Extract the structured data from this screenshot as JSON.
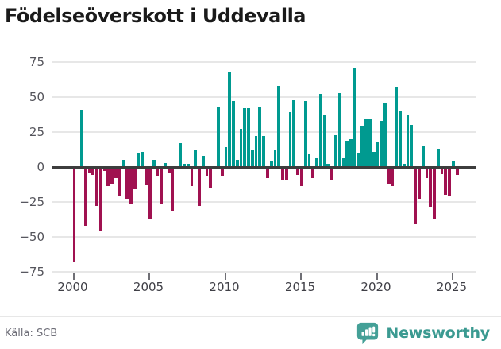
{
  "title": "Födelseöverskott i Uddevalla",
  "source_label": "Källa: SCB",
  "brand": {
    "name": "Newsworthy",
    "logo_color": "#44a097"
  },
  "chart_data": {
    "type": "bar",
    "title": "Födelseöverskott i Uddevalla",
    "unit": "quarterly birth surplus (persons)",
    "start_year": 2000,
    "start_quarter": 1,
    "frequency": "quarterly",
    "x_ticks": [
      2000,
      2005,
      2010,
      2015,
      2020,
      2025
    ],
    "y_ticks": [
      75,
      50,
      25,
      0,
      -25,
      -50,
      -75
    ],
    "ylim": [
      -75,
      75
    ],
    "grid": true,
    "colors": {
      "positive": "#009a90",
      "negative": "#a01150"
    },
    "values": [
      -67,
      0,
      41,
      -41,
      -3,
      -5,
      -27,
      -45,
      -2,
      -13,
      -11,
      -7,
      -20,
      5,
      -22,
      -26,
      -15,
      10,
      11,
      -12,
      -36,
      5,
      -6,
      -25,
      3,
      -3,
      -31,
      -1,
      17,
      2,
      2,
      -13,
      12,
      -27,
      8,
      -6,
      -14,
      0,
      43,
      -6,
      14,
      68,
      47,
      5,
      27,
      42,
      42,
      12,
      22,
      43,
      22,
      -7,
      4,
      12,
      58,
      -8,
      -9,
      39,
      48,
      -5,
      -13,
      47,
      9,
      -7,
      6,
      52,
      37,
      2,
      -9,
      23,
      53,
      6,
      19,
      20,
      71,
      10,
      29,
      34,
      34,
      11,
      18,
      33,
      46,
      -11,
      -13,
      57,
      40,
      2,
      37,
      30,
      -40,
      -22,
      15,
      -7,
      -28,
      -36,
      13,
      -4,
      -19,
      -20,
      4,
      -5
    ]
  }
}
